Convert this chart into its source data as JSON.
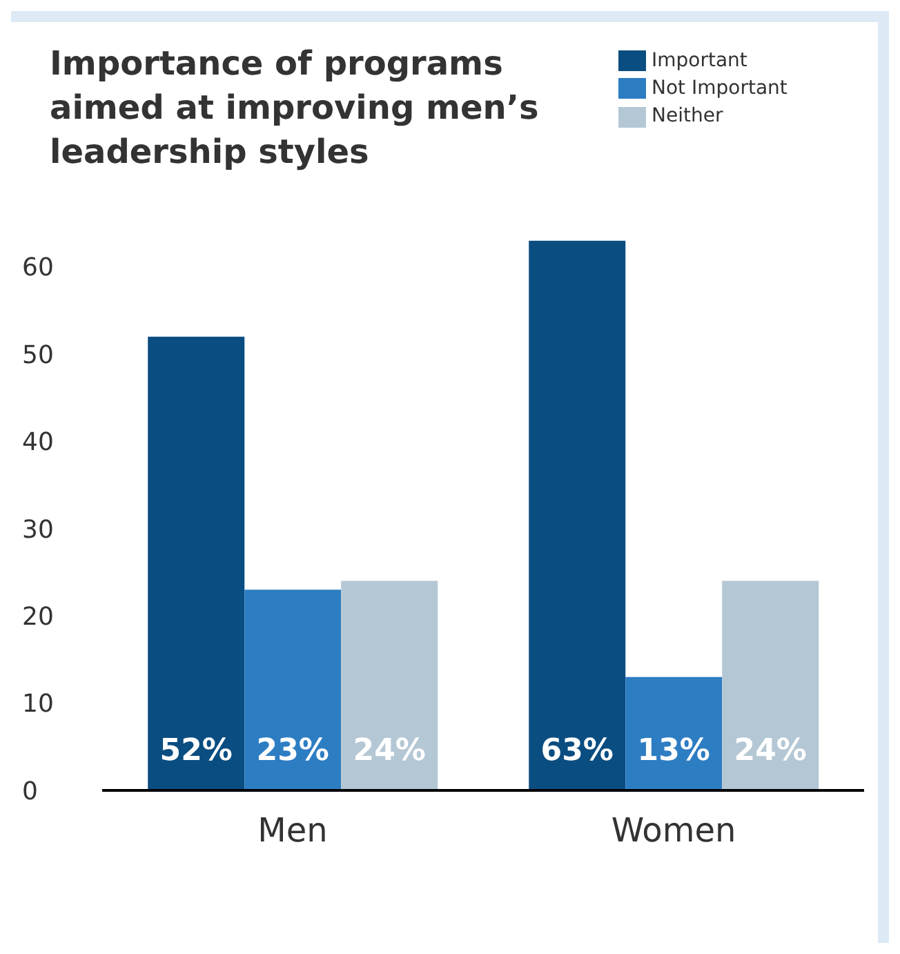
{
  "chart_data": {
    "type": "bar",
    "title": "Importance of programs aimed at improving men’s leadership styles",
    "categories": [
      "Men",
      "Women"
    ],
    "series": [
      {
        "name": "Important",
        "color": "#0a4d80",
        "values": [
          52,
          63
        ],
        "value_labels": [
          "52%",
          "63%"
        ]
      },
      {
        "name": "Not Important",
        "color": "#2d7dc3",
        "values": [
          23,
          13
        ],
        "value_labels": [
          "23%",
          "13%"
        ]
      },
      {
        "name": "Neither",
        "color": "#b4c7d4",
        "values": [
          24,
          24
        ],
        "value_labels": [
          "24%",
          "24%"
        ]
      }
    ],
    "ylim": [
      0,
      64
    ],
    "yticks": [
      0,
      10,
      20,
      30,
      40,
      50,
      60
    ],
    "grid": false,
    "legend": "top right"
  }
}
